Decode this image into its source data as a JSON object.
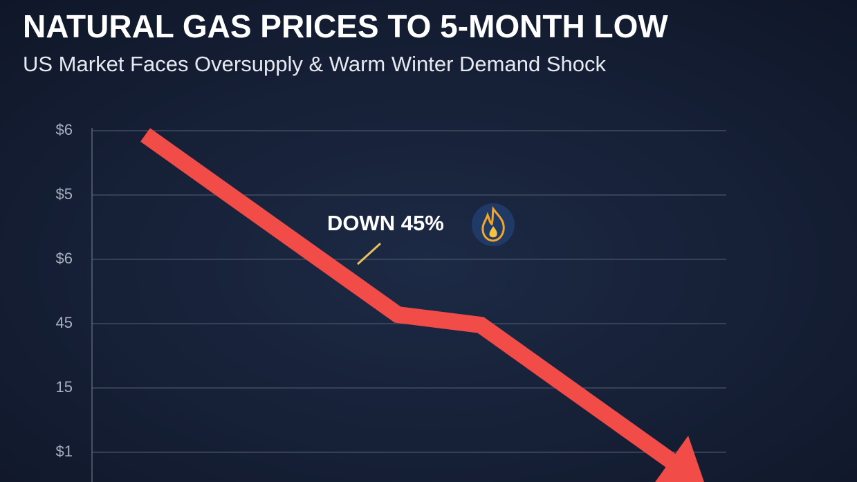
{
  "header": {
    "title": "NATURAL GAS PRICES TO 5-MONTH LOW",
    "subtitle": "US Market Faces Oversupply & Warm Winter Demand Shock"
  },
  "axis": {
    "labels": [
      "$6",
      "$5",
      "$6",
      "45",
      "15",
      "$1"
    ]
  },
  "annotation": "DOWN 45%"
}
